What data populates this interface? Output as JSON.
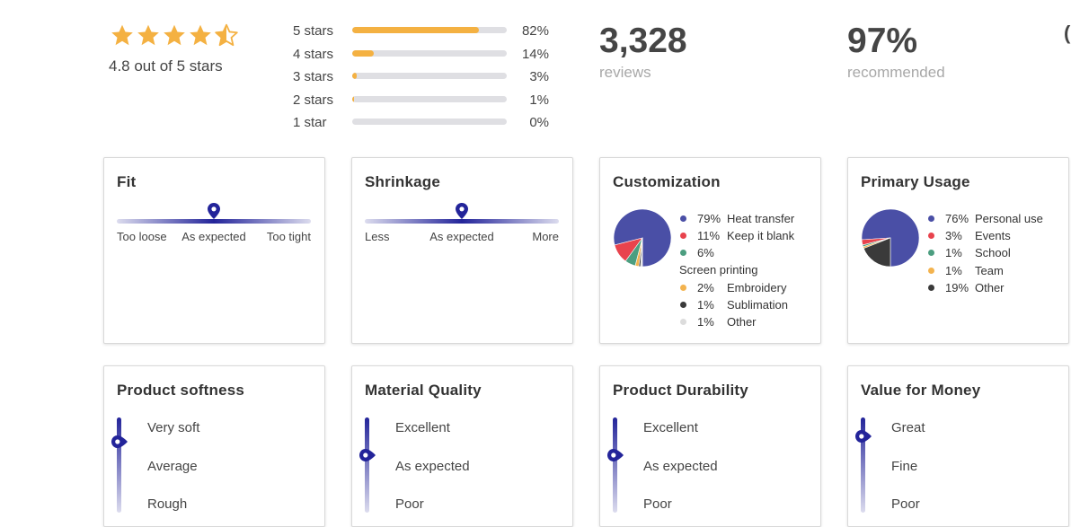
{
  "summary": {
    "rating_text": "4.8 out of 5 stars",
    "rating_value": 4.8,
    "star_color": "#f4b142",
    "distribution": [
      {
        "label": "5 stars",
        "pct_text": "82%",
        "pct": 82
      },
      {
        "label": "4 stars",
        "pct_text": "14%",
        "pct": 14
      },
      {
        "label": "3 stars",
        "pct_text": "3%",
        "pct": 3
      },
      {
        "label": "2 stars",
        "pct_text": "1%",
        "pct": 1
      },
      {
        "label": "1 star",
        "pct_text": "0%",
        "pct": 0
      }
    ],
    "reviews": {
      "value": "3,328",
      "label": "reviews"
    },
    "recommended": {
      "value": "97%",
      "label": "recommended"
    },
    "edge_fragment": "("
  },
  "accent_color": "#23249a",
  "fit": {
    "title": "Fit",
    "position": 0.5,
    "labels": [
      "Too loose",
      "As expected",
      "Too tight"
    ]
  },
  "shrinkage": {
    "title": "Shrinkage",
    "position": 0.5,
    "labels": [
      "Less",
      "As expected",
      "More"
    ]
  },
  "customization": {
    "title": "Customization",
    "chart_data": {
      "type": "pie",
      "slices": [
        {
          "pct_text": "79%",
          "name": "Heat transfer",
          "value": 79,
          "color": "#4a4fa6"
        },
        {
          "pct_text": "11%",
          "name": "Keep it blank",
          "value": 11,
          "color": "#e8434d"
        },
        {
          "pct_text": "6%",
          "name": "Screen printing",
          "value": 6,
          "color": "#4c9e80"
        },
        {
          "pct_text": "2%",
          "name": "Embroidery",
          "value": 2,
          "color": "#f3b34e"
        },
        {
          "pct_text": "1%",
          "name": "Sublimation",
          "value": 1,
          "color": "#3a3a3a"
        },
        {
          "pct_text": "1%",
          "name": "Other",
          "value": 1,
          "color": "#dcdcdc"
        }
      ]
    }
  },
  "primary_usage": {
    "title": "Primary Usage",
    "chart_data": {
      "type": "pie",
      "slices": [
        {
          "pct_text": "76%",
          "name": "Personal use",
          "value": 76,
          "color": "#4a4fa6"
        },
        {
          "pct_text": "3%",
          "name": "Events",
          "value": 3,
          "color": "#e8434d"
        },
        {
          "pct_text": "1%",
          "name": "School",
          "value": 1,
          "color": "#4c9e80"
        },
        {
          "pct_text": "1%",
          "name": "Team",
          "value": 1,
          "color": "#f3b34e"
        },
        {
          "pct_text": "19%",
          "name": "Other",
          "value": 19,
          "color": "#3a3a3a"
        }
      ]
    }
  },
  "softness": {
    "title": "Product softness",
    "level": 0.75,
    "labels": [
      "Very soft",
      "Average",
      "Rough"
    ]
  },
  "material_quality": {
    "title": "Material Quality",
    "level": 0.6,
    "labels": [
      "Excellent",
      "As expected",
      "Poor"
    ]
  },
  "durability": {
    "title": "Product Durability",
    "level": 0.6,
    "labels": [
      "Excellent",
      "As expected",
      "Poor"
    ]
  },
  "value_for_money": {
    "title": "Value for Money",
    "level": 0.8,
    "labels": [
      "Great",
      "Fine",
      "Poor"
    ]
  }
}
